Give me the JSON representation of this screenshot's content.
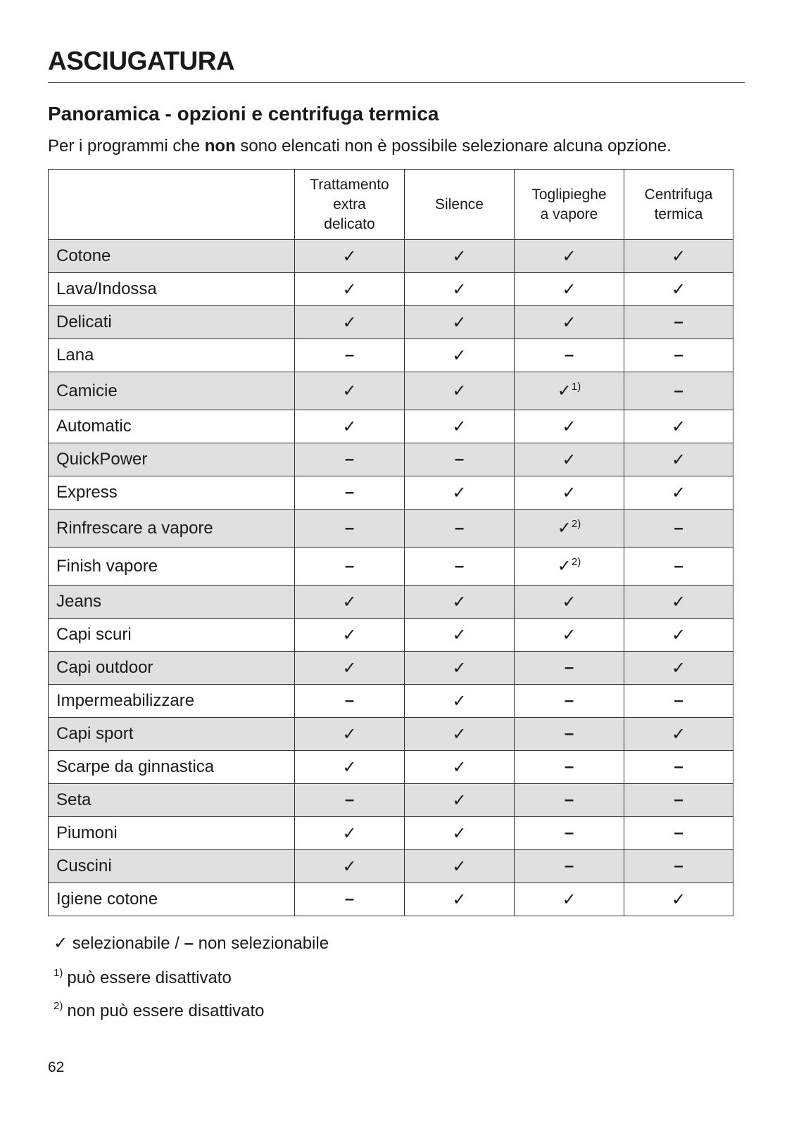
{
  "header": {
    "title": "ASCIUGATURA"
  },
  "section": {
    "title": "Panoramica - opzioni e centrifuga termica",
    "intro": [
      "Per i programmi che ",
      "non",
      " sono elencati non è possibile selezionare alcuna opzione."
    ]
  },
  "table": {
    "columns": [
      [
        "Trattamento",
        "extra",
        "delicato"
      ],
      [
        "Silence"
      ],
      [
        "Toglipieghe",
        "a vapore"
      ],
      [
        "Centrifuga",
        "termica"
      ]
    ],
    "rows": [
      {
        "label": "Cotone",
        "cells": [
          "✓",
          "✓",
          "✓",
          "✓"
        ]
      },
      {
        "label": "Lava/Indossa",
        "cells": [
          "✓",
          "✓",
          "✓",
          "✓"
        ]
      },
      {
        "label": "Delicati",
        "cells": [
          "✓",
          "✓",
          "✓",
          "–"
        ]
      },
      {
        "label": "Lana",
        "cells": [
          "–",
          "✓",
          "–",
          "–"
        ]
      },
      {
        "label": "Camicie",
        "cells": [
          "✓",
          "✓",
          {
            "mark": "✓",
            "note": "1)"
          },
          "–"
        ]
      },
      {
        "label": "Automatic",
        "cells": [
          "✓",
          "✓",
          "✓",
          "✓"
        ]
      },
      {
        "label": "QuickPower",
        "cells": [
          "–",
          "–",
          "✓",
          "✓"
        ]
      },
      {
        "label": "Express",
        "cells": [
          "–",
          "✓",
          "✓",
          "✓"
        ]
      },
      {
        "label": "Rinfrescare a vapore",
        "cells": [
          "–",
          "–",
          {
            "mark": "✓",
            "note": "2)"
          },
          "–"
        ]
      },
      {
        "label": "Finish vapore",
        "cells": [
          "–",
          "–",
          {
            "mark": "✓",
            "note": "2)"
          },
          "–"
        ]
      },
      {
        "label": "Jeans",
        "cells": [
          "✓",
          "✓",
          "✓",
          "✓"
        ]
      },
      {
        "label": "Capi scuri",
        "cells": [
          "✓",
          "✓",
          "✓",
          "✓"
        ]
      },
      {
        "label": "Capi outdoor",
        "cells": [
          "✓",
          "✓",
          "–",
          "✓"
        ]
      },
      {
        "label": "Impermeabilizzare",
        "cells": [
          "–",
          "✓",
          "–",
          "–"
        ]
      },
      {
        "label": "Capi sport",
        "cells": [
          "✓",
          "✓",
          "–",
          "✓"
        ]
      },
      {
        "label": "Scarpe da ginnastica",
        "cells": [
          "✓",
          "✓",
          "–",
          "–"
        ]
      },
      {
        "label": "Seta",
        "cells": [
          "–",
          "✓",
          "–",
          "–"
        ]
      },
      {
        "label": "Piumoni",
        "cells": [
          "✓",
          "✓",
          "–",
          "–"
        ]
      },
      {
        "label": "Cuscini",
        "cells": [
          "✓",
          "✓",
          "–",
          "–"
        ]
      },
      {
        "label": "Igiene cotone",
        "cells": [
          "–",
          "✓",
          "✓",
          "✓"
        ]
      }
    ]
  },
  "legend": {
    "check": "✓",
    "check_text": "selezionabile /",
    "dash": "–",
    "dash_text": "non selezionabile"
  },
  "footnotes": [
    {
      "mark": "1)",
      "text": "può essere disattivato"
    },
    {
      "mark": "2)",
      "text": "non può essere disattivato"
    }
  ],
  "page_number": "62"
}
